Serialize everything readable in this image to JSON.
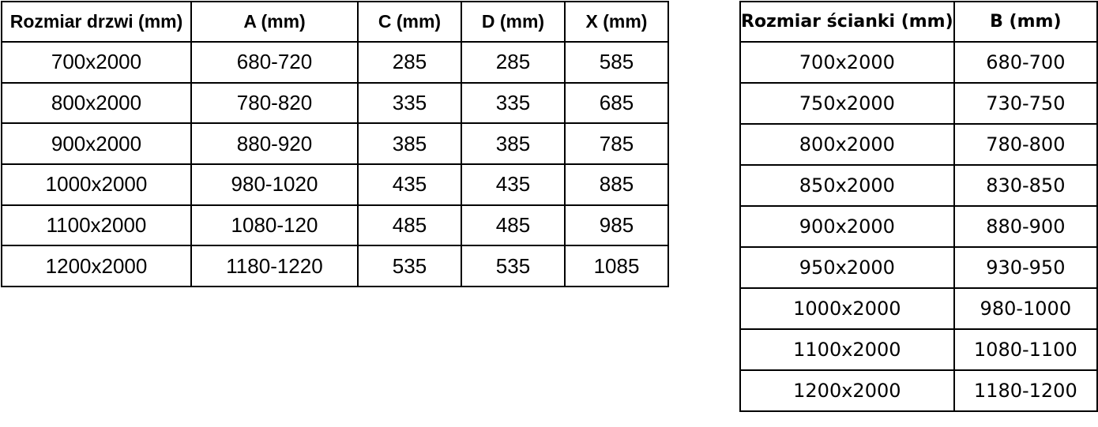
{
  "page": {
    "background_color": "#ffffff",
    "border_color": "#000000",
    "text_color": "#000000"
  },
  "tables": [
    {
      "id": "door-sizes",
      "headers": [
        "Rozmiar drzwi (mm)",
        "A (mm)",
        "C (mm)",
        "D (mm)",
        "X (mm)"
      ],
      "rows": [
        [
          "700x2000",
          "680-720",
          "285",
          "285",
          "585"
        ],
        [
          "800x2000",
          "780-820",
          "335",
          "335",
          "685"
        ],
        [
          "900x2000",
          "880-920",
          "385",
          "385",
          "785"
        ],
        [
          "1000x2000",
          "980-1020",
          "435",
          "435",
          "885"
        ],
        [
          "1100x2000",
          "1080-120",
          "485",
          "485",
          "985"
        ],
        [
          "1200x2000",
          "1180-1220",
          "535",
          "535",
          "1085"
        ]
      ]
    },
    {
      "id": "wall-sizes",
      "headers": [
        "Rozmiar ścianki (mm)",
        "B (mm)"
      ],
      "rows": [
        [
          "700x2000",
          "680-700"
        ],
        [
          "750x2000",
          "730-750"
        ],
        [
          "800x2000",
          "780-800"
        ],
        [
          "850x2000",
          "830-850"
        ],
        [
          "900x2000",
          "880-900"
        ],
        [
          "950x2000",
          "930-950"
        ],
        [
          "1000x2000",
          "980-1000"
        ],
        [
          "1100x2000",
          "1080-1100"
        ],
        [
          "1200x2000",
          "1180-1200"
        ]
      ]
    }
  ]
}
